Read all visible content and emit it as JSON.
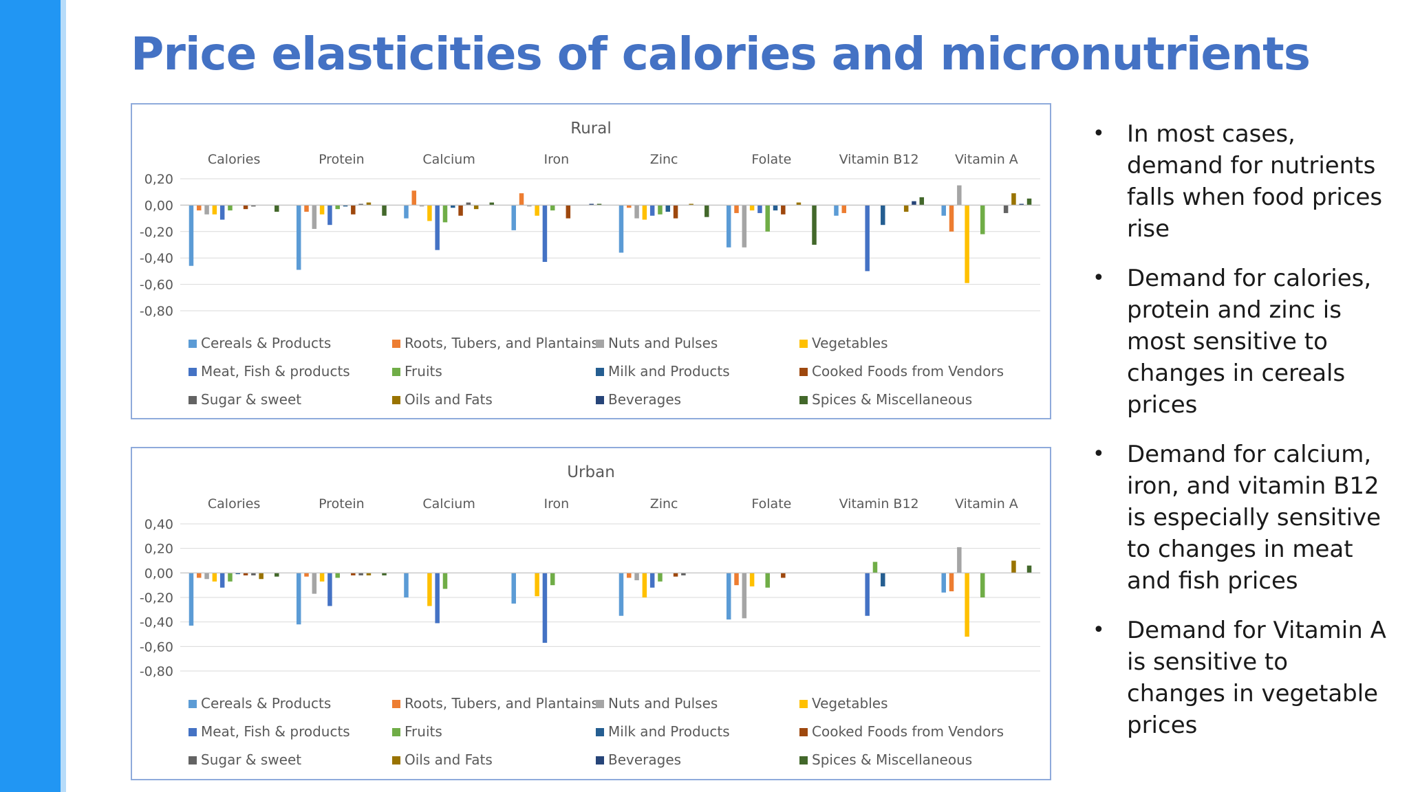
{
  "slide": {
    "title": "Price elasticities of calories and micronutrients",
    "accent_color": "#2196f3",
    "title_color": "#4472c4"
  },
  "bullets": [
    "In most cases, demand for nutrients falls when food prices rise",
    "Demand for calories, protein and zinc is most sensitive to changes in cereals prices",
    "Demand for calcium, iron, and vitamin B12 is especially sensitive to changes in meat and fish prices",
    "Demand for Vitamin A is sensitive to changes in vegetable prices"
  ],
  "legend": [
    {
      "name": "Cereals &  Products",
      "color": "#5b9bd5"
    },
    {
      "name": "Roots, Tubers, and Plantains",
      "color": "#ed7d31"
    },
    {
      "name": "Nuts and Pulses",
      "color": "#a5a5a5"
    },
    {
      "name": "Vegetables",
      "color": "#ffc000"
    },
    {
      "name": "Meat, Fish & products",
      "color": "#4472c4"
    },
    {
      "name": "Fruits",
      "color": "#70ad47"
    },
    {
      "name": "Milk and  Products",
      "color": "#255e91"
    },
    {
      "name": "Cooked Foods from Vendors",
      "color": "#9e480e"
    },
    {
      "name": "Sugar & sweet",
      "color": "#636363"
    },
    {
      "name": "Oils and Fats",
      "color": "#997300"
    },
    {
      "name": "Beverages",
      "color": "#264478"
    },
    {
      "name": "Spices & Miscellaneous",
      "color": "#43682b"
    }
  ],
  "chart_data": [
    {
      "type": "bar",
      "title": "Rural",
      "categories": [
        "Calories",
        "Protein",
        "Calcium",
        "Iron",
        "Zinc",
        "Folate",
        "Vitamin B12",
        "Vitamin A"
      ],
      "yticks": [
        "0,20",
        "0,00",
        "-0,20",
        "-0,40",
        "-0,60",
        "-0,80"
      ],
      "ylim": [
        -0.8,
        0.2
      ],
      "grid": true,
      "legend_position": "bottom",
      "series": [
        {
          "name": "Cereals &  Products",
          "values": [
            -0.46,
            -0.49,
            -0.1,
            -0.19,
            -0.36,
            -0.32,
            -0.08,
            -0.08
          ]
        },
        {
          "name": "Roots, Tubers, and Plantains",
          "values": [
            -0.04,
            -0.05,
            0.11,
            0.09,
            -0.02,
            -0.06,
            -0.06,
            -0.2
          ]
        },
        {
          "name": "Nuts and Pulses",
          "values": [
            -0.07,
            -0.18,
            -0.01,
            -0.01,
            -0.1,
            -0.32,
            0.0,
            0.15
          ]
        },
        {
          "name": "Vegetables",
          "values": [
            -0.07,
            -0.07,
            -0.12,
            -0.08,
            -0.11,
            -0.04,
            0.0,
            -0.59
          ]
        },
        {
          "name": "Meat, Fish & products",
          "values": [
            -0.11,
            -0.15,
            -0.34,
            -0.43,
            -0.08,
            -0.06,
            -0.5,
            0.0
          ]
        },
        {
          "name": "Fruits",
          "values": [
            -0.04,
            -0.03,
            -0.13,
            -0.04,
            -0.07,
            -0.2,
            0.0,
            -0.22
          ]
        },
        {
          "name": "Milk and  Products",
          "values": [
            0.0,
            -0.01,
            -0.02,
            0.0,
            -0.05,
            -0.04,
            -0.15,
            0.0
          ]
        },
        {
          "name": "Cooked Foods from Vendors",
          "values": [
            -0.03,
            -0.07,
            -0.08,
            -0.1,
            -0.1,
            -0.07,
            0.0,
            0.0
          ]
        },
        {
          "name": "Sugar & sweet",
          "values": [
            -0.01,
            0.01,
            0.02,
            0.0,
            0.0,
            0.0,
            0.0,
            -0.06
          ]
        },
        {
          "name": "Oils and Fats",
          "values": [
            0.0,
            0.02,
            -0.03,
            0.0,
            0.01,
            0.02,
            -0.05,
            0.09
          ]
        },
        {
          "name": "Beverages",
          "values": [
            0.0,
            0.0,
            0.0,
            0.01,
            0.0,
            0.0,
            0.03,
            0.01
          ]
        },
        {
          "name": "Spices & Miscellaneous",
          "values": [
            -0.05,
            -0.08,
            0.02,
            0.01,
            -0.09,
            -0.3,
            0.06,
            0.05
          ]
        }
      ]
    },
    {
      "type": "bar",
      "title": "Urban",
      "categories": [
        "Calories",
        "Protein",
        "Calcium",
        "Iron",
        "Zinc",
        "Folate",
        "Vitamin B12",
        "Vitamin A"
      ],
      "yticks": [
        "0,40",
        "0,20",
        "0,00",
        "-0,20",
        "-0,40",
        "-0,60",
        "-0,80"
      ],
      "ylim": [
        -0.8,
        0.4
      ],
      "grid": true,
      "legend_position": "bottom",
      "series": [
        {
          "name": "Cereals &  Products",
          "values": [
            -0.43,
            -0.42,
            -0.2,
            -0.25,
            -0.35,
            -0.38,
            0.0,
            -0.16
          ]
        },
        {
          "name": "Roots, Tubers, and Plantains",
          "values": [
            -0.04,
            -0.03,
            0.0,
            0.0,
            -0.04,
            -0.1,
            0.0,
            -0.15
          ]
        },
        {
          "name": "Nuts and Pulses",
          "values": [
            -0.05,
            -0.17,
            0.0,
            0.0,
            -0.06,
            -0.37,
            0.0,
            0.21
          ]
        },
        {
          "name": "Vegetables",
          "values": [
            -0.07,
            -0.07,
            -0.27,
            -0.19,
            -0.2,
            -0.11,
            0.0,
            -0.52
          ]
        },
        {
          "name": "Meat, Fish & products",
          "values": [
            -0.12,
            -0.27,
            -0.41,
            -0.57,
            -0.12,
            0.0,
            -0.35,
            0.0
          ]
        },
        {
          "name": "Fruits",
          "values": [
            -0.07,
            -0.04,
            -0.13,
            -0.1,
            -0.07,
            -0.12,
            0.09,
            -0.2
          ]
        },
        {
          "name": "Milk and  Products",
          "values": [
            -0.01,
            0.0,
            0.0,
            0.0,
            0.0,
            0.0,
            -0.11,
            0.0
          ]
        },
        {
          "name": "Cooked Foods from Vendors",
          "values": [
            -0.02,
            -0.02,
            0.0,
            0.0,
            -0.03,
            -0.04,
            0.0,
            0.0
          ]
        },
        {
          "name": "Sugar & sweet",
          "values": [
            -0.02,
            -0.02,
            0.0,
            0.0,
            -0.02,
            0.0,
            0.0,
            0.0
          ]
        },
        {
          "name": "Oils and Fats",
          "values": [
            -0.05,
            -0.02,
            0.0,
            0.0,
            0.0,
            0.0,
            0.0,
            0.1
          ]
        },
        {
          "name": "Beverages",
          "values": [
            0.0,
            0.0,
            0.0,
            0.0,
            0.0,
            0.0,
            0.0,
            0.0
          ]
        },
        {
          "name": "Spices & Miscellaneous",
          "values": [
            -0.03,
            -0.02,
            0.0,
            0.0,
            0.0,
            0.0,
            0.0,
            0.06
          ]
        }
      ]
    }
  ]
}
